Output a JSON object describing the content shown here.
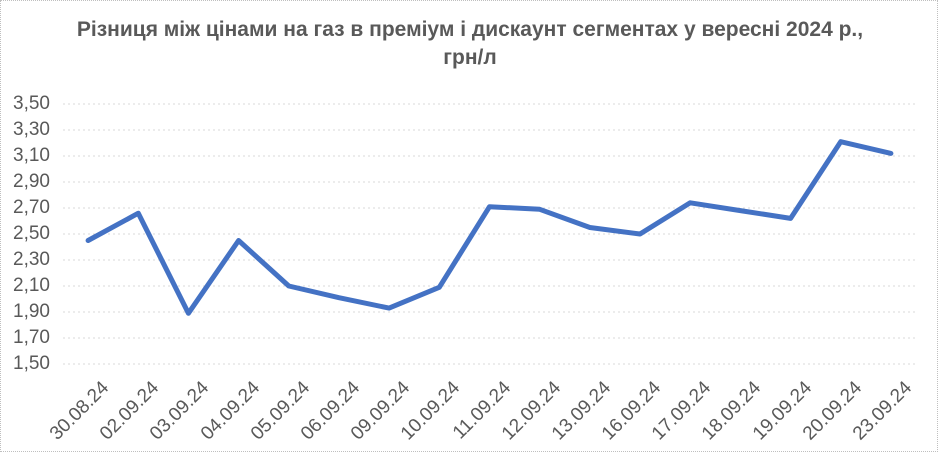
{
  "chart_data": {
    "type": "line",
    "title": "Різниця між цінами на газ в преміум і дискаунт сегментах у вересні 2024 р., грн/л",
    "categories": [
      "30.08.24",
      "02.09.24",
      "03.09.24",
      "04.09.24",
      "05.09.24",
      "06.09.24",
      "09.09.24",
      "10.09.24",
      "11.09.24",
      "12.09.24",
      "13.09.24",
      "16.09.24",
      "17.09.24",
      "18.09.24",
      "19.09.24",
      "20.09.24",
      "23.09.24"
    ],
    "values": [
      2.45,
      2.66,
      1.89,
      2.45,
      2.1,
      2.01,
      1.93,
      2.09,
      2.71,
      2.69,
      2.55,
      2.5,
      2.74,
      2.68,
      2.62,
      3.21,
      3.12
    ],
    "xlabel": "",
    "ylabel": "",
    "ylim": [
      1.5,
      3.5
    ],
    "ytick_step": 0.2,
    "ytick_labels": [
      "1,50",
      "1,70",
      "1,90",
      "2,10",
      "2,30",
      "2,50",
      "2,70",
      "2,90",
      "3,10",
      "3,30",
      "3,50"
    ],
    "decimal_separator": ",",
    "grid": "horizontal",
    "gridline_style": "dashed",
    "legend": "none",
    "x_label_rotation_deg": 45,
    "colors": {
      "line": "#4472C4",
      "gridline": "#D9D9D9",
      "text": "#595959",
      "chart_border": "#BFBFBF",
      "background": "#FFFFFF"
    }
  }
}
